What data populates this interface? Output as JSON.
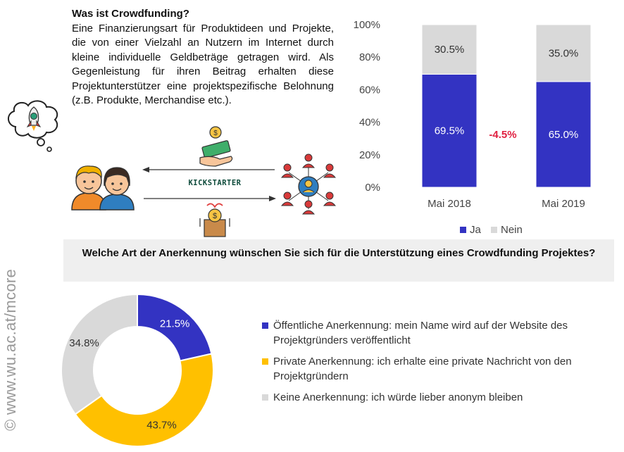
{
  "intro": {
    "title": "Was ist Crowdfunding?",
    "body": "Eine Finanzierungsart für Produktideen und Projekte, die von einer Vielzahl an Nutzern im Internet durch kleine individuelle Geldbeträge getragen wird. Als Gegenleistung für ihren Beitrag erhalten diese Projektunterstützer eine projektspezifische Belohnung (z.B. Produkte, Merchandise etc.)."
  },
  "illustration": {
    "platform_label": "KICKSTARTER",
    "icons": [
      "rocket-icon",
      "thought-bubble-icon",
      "couple-icon",
      "money-hand-icon",
      "gift-coin-icon",
      "network-people-icon",
      "arrow-left-icon",
      "arrow-right-icon"
    ]
  },
  "colors": {
    "ja": "#3333c2",
    "nein": "#d9d9d9",
    "private": "#ffc000",
    "delta": "#e02040"
  },
  "chart_data": [
    {
      "type": "bar",
      "stacked": true,
      "categories": [
        "Mai 2018",
        "Mai 2019"
      ],
      "series": [
        {
          "name": "Ja",
          "values": [
            69.5,
            65.0
          ],
          "labels": [
            "69.5%",
            "65.0%"
          ],
          "color": "#3333c2"
        },
        {
          "name": "Nein",
          "values": [
            30.5,
            35.0
          ],
          "labels": [
            "30.5%",
            "35.0%"
          ],
          "color": "#d9d9d9"
        }
      ],
      "ylim": [
        0,
        100
      ],
      "yticks": [
        "0%",
        "20%",
        "40%",
        "60%",
        "80%",
        "100%"
      ],
      "annotation": "-4.5%",
      "legend": "bottom",
      "grid": false
    },
    {
      "type": "pie",
      "donut": true,
      "title": "Welche Art der Anerkennung wünschen Sie sich für die Unterstützung eines Crowdfunding Projektes?",
      "slices": [
        {
          "label": "Öffentliche Anerkennung: mein Name wird auf der  Website des Projektgründers veröffentlicht",
          "value": 21.5,
          "value_label": "21.5%",
          "color": "#3333c2"
        },
        {
          "label": "Private Anerkennung: ich erhalte eine private Nachricht von den Projektgründern",
          "value": 43.7,
          "value_label": "43.7%",
          "color": "#ffc000"
        },
        {
          "label": "Keine Anerkennung: ich würde lieber anonym bleiben",
          "value": 34.8,
          "value_label": "34.8%",
          "color": "#d9d9d9"
        }
      ],
      "legend": "right"
    }
  ],
  "copyright": "© www.wu.ac.at/mcore"
}
